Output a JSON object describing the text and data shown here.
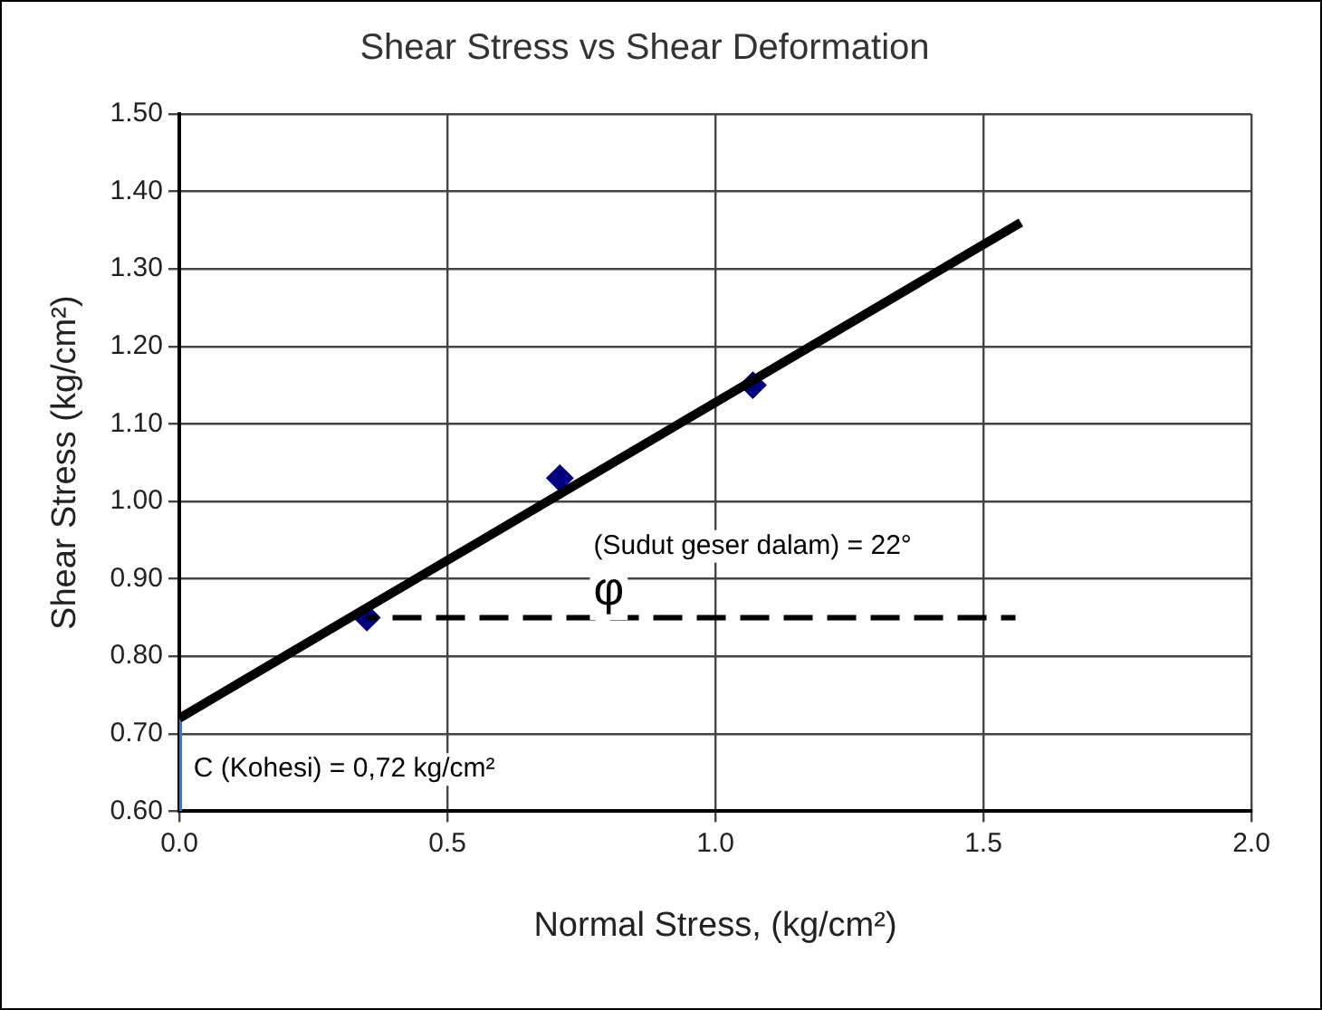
{
  "chart_data": {
    "type": "scatter",
    "title": "Shear Stress vs Shear Deformation",
    "xlabel": "Normal Stress, (kg/cm²)",
    "ylabel": "Shear Stress (kg/cm²)",
    "xlim": [
      0,
      2
    ],
    "xticks": [
      {
        "value": 0,
        "label": "0.0"
      },
      {
        "value": 0.5,
        "label": "0.5"
      },
      {
        "value": 1,
        "label": "1.0"
      },
      {
        "value": 1.5,
        "label": "1.5"
      },
      {
        "value": 2,
        "label": "2.0"
      }
    ],
    "ylim": [
      0.6,
      1.5
    ],
    "yticks": [
      {
        "value": 0.6,
        "label": "0.60"
      },
      {
        "value": 0.7,
        "label": "0.70"
      },
      {
        "value": 0.8,
        "label": "0.80"
      },
      {
        "value": 0.9,
        "label": "0.90"
      },
      {
        "value": 1.0,
        "label": "1.00"
      },
      {
        "value": 1.1,
        "label": "1.10"
      },
      {
        "value": 1.2,
        "label": "1.20"
      },
      {
        "value": 1.3,
        "label": "1.30"
      },
      {
        "value": 1.4,
        "label": "1.40"
      },
      {
        "value": 1.5,
        "label": "1.50"
      }
    ],
    "grid": true,
    "legend": false,
    "series": [
      {
        "type": "line",
        "x": [
          0,
          1.57
        ],
        "values": [
          0.72,
          1.36
        ],
        "color": "#000000",
        "marker": "none"
      },
      {
        "type": "line",
        "x": [
          0.35,
          1.56
        ],
        "values": [
          0.85,
          0.85
        ],
        "color": "#000000",
        "marker": "none",
        "line_style": "dashed"
      },
      {
        "type": "line",
        "x": [
          0,
          0
        ],
        "values": [
          0.6,
          0.72
        ],
        "color": "#4472c4",
        "marker": "none"
      },
      {
        "type": "scatter",
        "x": [
          0.35,
          0.71,
          1.07
        ],
        "values": [
          0.85,
          1.03,
          1.15
        ],
        "color": "#000080",
        "marker": "diamond"
      }
    ],
    "annotations": [
      "(Sudut geser dalam) = 22°",
      "φ",
      "C (Kohesi) = 0,72 kg/cm²"
    ]
  }
}
